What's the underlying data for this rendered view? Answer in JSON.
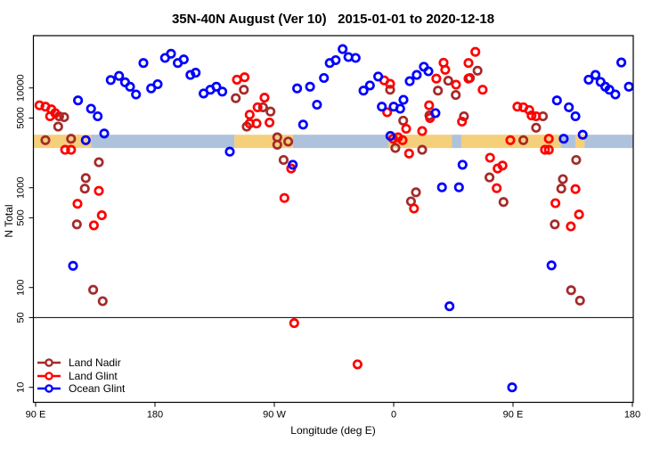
{
  "chart_data": {
    "type": "scatter",
    "title": "35N-40N August (Ver 10)   2015-01-01 to 2020-12-18",
    "xlabel": "Longitude (deg E)",
    "ylabel": "N Total",
    "x_axis": {
      "range": [
        0,
        450
      ],
      "ticks": [
        {
          "pos": 0,
          "label": "90 E"
        },
        {
          "pos": 90,
          "label": "180"
        },
        {
          "pos": 180,
          "label": "90 W"
        },
        {
          "pos": 270,
          "label": "0"
        },
        {
          "pos": 360,
          "label": "90 E"
        },
        {
          "pos": 450,
          "label": "180"
        }
      ]
    },
    "y_axis": {
      "scale": "log",
      "ticks": [
        {
          "value": 10,
          "label": "10"
        },
        {
          "value": 50,
          "label": "50"
        },
        {
          "value": 100,
          "label": "100"
        },
        {
          "value": 500,
          "label": "500"
        },
        {
          "value": 1000,
          "label": "1000"
        },
        {
          "value": 5000,
          "label": "5000"
        },
        {
          "value": 10000,
          "label": "10000"
        }
      ]
    },
    "reference_line_y": 50,
    "surface_band": {
      "value_top": 3400,
      "value_bottom": 2500,
      "land_color": "#F5CF7A",
      "ocean_color": "#AEC2DC",
      "segments": [
        {
          "from": 0,
          "to": 42,
          "type": "land"
        },
        {
          "from": 42,
          "to": 150,
          "type": "ocean"
        },
        {
          "from": 150,
          "to": 194,
          "type": "land"
        },
        {
          "from": 194,
          "to": 266,
          "type": "ocean"
        },
        {
          "from": 266,
          "to": 314,
          "type": "land"
        },
        {
          "from": 314,
          "to": 321,
          "type": "ocean"
        },
        {
          "from": 321,
          "to": 396,
          "type": "land"
        },
        {
          "from": 396,
          "to": 407,
          "type": "ocean"
        },
        {
          "from": 407,
          "to": 414,
          "type": "land"
        },
        {
          "from": 414,
          "to": 450,
          "type": "ocean"
        }
      ]
    },
    "series": [
      {
        "name": "Land Nadir",
        "color": "#A52A2A",
        "points": [
          [
            17.7,
            5200
          ],
          [
            21.5,
            5100
          ],
          [
            17,
            4100
          ],
          [
            7.4,
            3000
          ],
          [
            26.7,
            3100
          ],
          [
            47.7,
            1800
          ],
          [
            37.8,
            1250
          ],
          [
            37.1,
            980
          ],
          [
            31.1,
            430
          ],
          [
            43.4,
            95
          ],
          [
            50.6,
            73
          ],
          [
            157,
            9600
          ],
          [
            150.9,
            7900
          ],
          [
            159.2,
            4100
          ],
          [
            171.5,
            6400
          ],
          [
            177.1,
            5800
          ],
          [
            182.2,
            3200
          ],
          [
            182.2,
            2700
          ],
          [
            190.5,
            2900
          ],
          [
            187,
            1900
          ],
          [
            267.3,
            9600
          ],
          [
            271.3,
            2500
          ],
          [
            291.5,
            2400
          ],
          [
            277.2,
            4700
          ],
          [
            286.8,
            900
          ],
          [
            283,
            730
          ],
          [
            296.9,
            5300
          ],
          [
            311.2,
            11800
          ],
          [
            303.4,
            9400
          ],
          [
            316.8,
            8500
          ],
          [
            333.3,
            14900
          ],
          [
            327.5,
            12600
          ],
          [
            323,
            5200
          ],
          [
            342.3,
            1270
          ],
          [
            352.8,
            720
          ],
          [
            367.8,
            3000
          ],
          [
            382.6,
            5200
          ],
          [
            377.4,
            4000
          ],
          [
            391.5,
            430
          ],
          [
            397.6,
            1220
          ],
          [
            396.4,
            980
          ],
          [
            407.6,
            1900
          ],
          [
            403.8,
            94
          ],
          [
            410.5,
            74
          ]
        ]
      },
      {
        "name": "Land Glint",
        "color": "#FF0000",
        "points": [
          [
            2.9,
            6700
          ],
          [
            7.4,
            6500
          ],
          [
            11.9,
            6100
          ],
          [
            14.8,
            5600
          ],
          [
            10.9,
            5200
          ],
          [
            22.2,
            2400
          ],
          [
            26.7,
            2400
          ],
          [
            47.7,
            930
          ],
          [
            31.6,
            690
          ],
          [
            49.9,
            530
          ],
          [
            43.9,
            420
          ],
          [
            195,
            44
          ],
          [
            151.8,
            12100
          ],
          [
            157.6,
            12800
          ],
          [
            161.4,
            5400
          ],
          [
            167.4,
            6400
          ],
          [
            161.4,
            4400
          ],
          [
            166.6,
            4400
          ],
          [
            172.6,
            8000
          ],
          [
            176.4,
            4500
          ],
          [
            192.7,
            1560
          ],
          [
            187.6,
            790
          ],
          [
            262.9,
            11900
          ],
          [
            267.3,
            11000
          ],
          [
            265.1,
            5700
          ],
          [
            269.5,
            3100
          ],
          [
            273.3,
            3200
          ],
          [
            276.7,
            3000
          ],
          [
            279.4,
            3900
          ],
          [
            281.6,
            2200
          ],
          [
            291.5,
            3700
          ],
          [
            297.4,
            5000
          ],
          [
            296.7,
            6700
          ],
          [
            302.2,
            12400
          ],
          [
            307.6,
            17900
          ],
          [
            308.9,
            15200
          ],
          [
            317,
            10800
          ],
          [
            326.4,
            17800
          ],
          [
            326.4,
            12400
          ],
          [
            331.6,
            23000
          ],
          [
            337.1,
            9600
          ],
          [
            321.5,
            4600
          ],
          [
            342.7,
            2000
          ],
          [
            352.1,
            1670
          ],
          [
            348.4,
            1560
          ],
          [
            347.7,
            990
          ],
          [
            358,
            3000
          ],
          [
            363.3,
            6500
          ],
          [
            367.8,
            6400
          ],
          [
            372.2,
            6000
          ],
          [
            374,
            5300
          ],
          [
            377.4,
            5200
          ],
          [
            387,
            3100
          ],
          [
            384.1,
            2400
          ],
          [
            387,
            2400
          ],
          [
            392,
            700
          ],
          [
            407.1,
            970
          ],
          [
            409.8,
            540
          ],
          [
            403.6,
            410
          ],
          [
            285.3,
            620
          ],
          [
            242.7,
            17
          ]
        ]
      },
      {
        "name": "Ocean Glint",
        "color": "#0000FF",
        "points": [
          [
            32,
            7500
          ],
          [
            41.8,
            6200
          ],
          [
            46.8,
            5200
          ],
          [
            56.6,
            12000
          ],
          [
            62.9,
            13200
          ],
          [
            67.4,
            11400
          ],
          [
            71.2,
            10300
          ],
          [
            75.7,
            8600
          ],
          [
            87.1,
            9900
          ],
          [
            92,
            10900
          ],
          [
            81.3,
            17800
          ],
          [
            97.6,
            20000
          ],
          [
            102.1,
            22000
          ],
          [
            107.2,
            17800
          ],
          [
            111.7,
            19300
          ],
          [
            116.7,
            13500
          ],
          [
            120.7,
            14200
          ],
          [
            126.7,
            8800
          ],
          [
            131.8,
            9600
          ],
          [
            136.3,
            10300
          ],
          [
            140.8,
            9200
          ],
          [
            37.8,
            3000
          ],
          [
            51.7,
            3500
          ],
          [
            28.2,
            165
          ],
          [
            146.4,
            2300
          ],
          [
            193.9,
            1700
          ],
          [
            231.5,
            24500
          ],
          [
            226.3,
            19000
          ],
          [
            221.8,
            17800
          ],
          [
            235.9,
            20400
          ],
          [
            241.3,
            20000
          ],
          [
            217.4,
            12600
          ],
          [
            197.2,
            9900
          ],
          [
            206.9,
            10300
          ],
          [
            212.2,
            6800
          ],
          [
            201.7,
            4300
          ],
          [
            247.2,
            9400
          ],
          [
            252.1,
            10600
          ],
          [
            258.3,
            13000
          ],
          [
            282.1,
            11700
          ],
          [
            287.4,
            13500
          ],
          [
            292.8,
            16300
          ],
          [
            296.2,
            14700
          ],
          [
            261.1,
            6500
          ],
          [
            270,
            6500
          ],
          [
            274.9,
            6200
          ],
          [
            277.4,
            7600
          ],
          [
            267.5,
            3300
          ],
          [
            301.5,
            5600
          ],
          [
            321.9,
            1700
          ],
          [
            306.4,
            1010
          ],
          [
            319.2,
            1010
          ],
          [
            312.1,
            65
          ],
          [
            389,
            167
          ],
          [
            393.1,
            7500
          ],
          [
            402.1,
            6400
          ],
          [
            407.1,
            5200
          ],
          [
            398.2,
            3100
          ],
          [
            412.5,
            3400
          ],
          [
            417,
            12100
          ],
          [
            422.2,
            13500
          ],
          [
            426,
            11500
          ],
          [
            429.6,
            10300
          ],
          [
            432.7,
            9600
          ],
          [
            437.2,
            8600
          ],
          [
            441.7,
            18000
          ],
          [
            447.4,
            10300
          ],
          [
            359.3,
            10
          ]
        ]
      }
    ],
    "legend": {
      "position": "bottom-left"
    }
  }
}
